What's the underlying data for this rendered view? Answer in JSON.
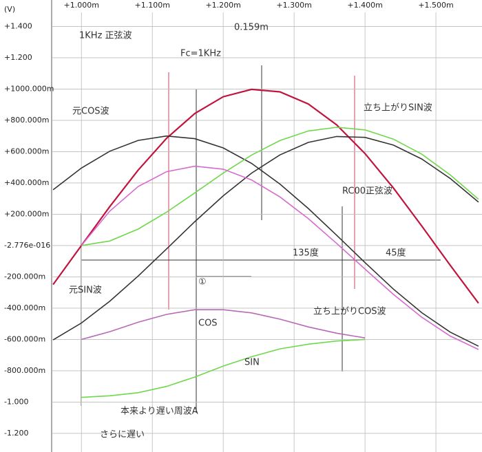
{
  "chart_data": {
    "type": "line",
    "y_unit": "(V)",
    "xlim": [
      0.958,
      1.565
    ],
    "ylim": [
      -1.319,
      1.569
    ],
    "xticks": [
      {
        "value": 1.0,
        "label": "+1.000m"
      },
      {
        "value": 1.1,
        "label": "+1.100m"
      },
      {
        "value": 1.2,
        "label": "+1.200m"
      },
      {
        "value": 1.3,
        "label": "+1.300m"
      },
      {
        "value": 1.4,
        "label": "+1.400m"
      },
      {
        "value": 1.5,
        "label": "+1.500m"
      }
    ],
    "yticks": [
      {
        "value": 1.4,
        "label": "+1.400"
      },
      {
        "value": 1.2,
        "label": "+1.200"
      },
      {
        "value": 1.0,
        "label": "+1000.000m"
      },
      {
        "value": 0.8,
        "label": "+800.000m"
      },
      {
        "value": 0.6,
        "label": "+600.000m"
      },
      {
        "value": 0.4,
        "label": "+400.000m"
      },
      {
        "value": 0.2,
        "label": "+200.000m"
      },
      {
        "value": -2.776e-16,
        "label": "-2.776e-016"
      },
      {
        "value": -0.2,
        "label": "-200.000m"
      },
      {
        "value": -0.4,
        "label": "-400.000m"
      },
      {
        "value": -0.6,
        "label": "-600.000m"
      },
      {
        "value": -0.8,
        "label": "-800.000m"
      },
      {
        "value": -1.0,
        "label": "-1.000"
      },
      {
        "value": -1.2,
        "label": "-1.200"
      }
    ],
    "grid": true,
    "x": [
      0.96,
      1.0,
      1.04,
      1.08,
      1.12,
      1.16,
      1.2,
      1.24,
      1.28,
      1.32,
      1.36,
      1.4,
      1.44,
      1.48,
      1.52,
      1.56
    ],
    "series": [
      {
        "color": "#c0143c",
        "values": [
          -0.249,
          0,
          0.249,
          0.482,
          0.685,
          0.844,
          0.951,
          0.998,
          0.982,
          0.905,
          0.771,
          0.588,
          0.368,
          0.125,
          -0.125,
          -0.368
        ]
      },
      {
        "color": "#333333",
        "values": [
          0.356,
          0.495,
          0.603,
          0.672,
          0.7,
          0.683,
          0.624,
          0.525,
          0.393,
          0.237,
          0.066,
          -0.109,
          -0.278,
          -0.429,
          -0.553,
          -0.643
        ]
      },
      {
        "color": "#333333",
        "values": [
          -0.603,
          -0.495,
          -0.356,
          -0.195,
          -0.022,
          0.153,
          0.318,
          0.463,
          0.579,
          0.659,
          0.697,
          0.691,
          0.642,
          0.553,
          0.429,
          0.278
        ]
      },
      {
        "color": "#6fd84a",
        "values": [
          null,
          0,
          0.029,
          0.105,
          0.213,
          0.337,
          0.463,
          0.578,
          0.671,
          0.732,
          0.756,
          0.739,
          0.68,
          0.584,
          0.452,
          0.296
        ]
      },
      {
        "color": "#d66ad0",
        "values": [
          null,
          0,
          0.22,
          0.377,
          0.472,
          0.507,
          0.488,
          0.419,
          0.311,
          0.172,
          0.014,
          -0.15,
          -0.312,
          -0.458,
          -0.578,
          -0.664
        ]
      },
      {
        "color": "#b868b8",
        "values": [
          null,
          -0.6,
          -0.55,
          -0.49,
          -0.44,
          -0.41,
          -0.41,
          -0.43,
          -0.47,
          -0.52,
          -0.56,
          -0.59,
          null,
          null,
          null,
          null
        ]
      },
      {
        "color": "#6fd84a",
        "values": [
          null,
          -0.97,
          -0.96,
          -0.94,
          -0.9,
          -0.84,
          -0.77,
          -0.71,
          -0.66,
          -0.63,
          -0.61,
          -0.6,
          null,
          null,
          null,
          null
        ]
      }
    ],
    "annotations": [
      "1KHz 正弦波",
      "0.159m",
      "Fc=1KHz",
      "元COS波",
      "立ち上がりSIN波",
      "RC00正弦波",
      "135度",
      "45度",
      "元SIN波",
      "立ち上がりCOS波",
      "①",
      "COS",
      "SIN",
      "本来より遅い周波A",
      "さらに遅い"
    ]
  }
}
